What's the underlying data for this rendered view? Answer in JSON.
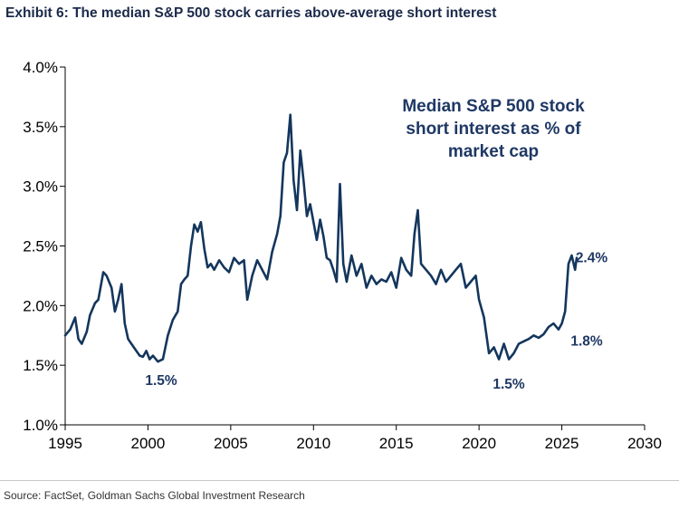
{
  "header": {
    "title": "Exhibit 6: The median S&P 500 stock carries above-average short interest"
  },
  "footer": {
    "source": "Source: FactSet, Goldman Sachs Global Investment Research"
  },
  "chart_data": {
    "type": "line",
    "series_label_lines": [
      "Median S&P 500 stock",
      "short interest as % of",
      "market cap"
    ],
    "colors": {
      "line": "#14365d",
      "text": "#1f3864"
    },
    "xlim": [
      1995,
      2030
    ],
    "ylim": [
      1.0,
      4.0
    ],
    "x_ticks": [
      1995,
      2000,
      2005,
      2010,
      2015,
      2020,
      2025,
      2030
    ],
    "y_ticks": [
      {
        "value": 1.0,
        "label": "1.0%"
      },
      {
        "value": 1.5,
        "label": "1.5%"
      },
      {
        "value": 2.0,
        "label": "2.0%"
      },
      {
        "value": 2.5,
        "label": "2.5%"
      },
      {
        "value": 3.0,
        "label": "3.0%"
      },
      {
        "value": 3.5,
        "label": "3.5%"
      },
      {
        "value": 4.0,
        "label": "4.0%"
      }
    ],
    "grid": false,
    "annotations": [
      {
        "text": "1.5%",
        "x": 2000.8,
        "y": 1.38
      },
      {
        "text": "1.5%",
        "x": 2021.8,
        "y": 1.35
      },
      {
        "text": "1.8%",
        "x": 2026.5,
        "y": 1.71
      },
      {
        "text": "2.4%",
        "x": 2026.8,
        "y": 2.41
      }
    ],
    "series": [
      {
        "x": [
          1995.0,
          1995.3,
          1995.6,
          1995.8,
          1996.0,
          1996.3,
          1996.5,
          1996.8,
          1997.0,
          1997.3,
          1997.5,
          1997.8,
          1998.0,
          1998.2,
          1998.4,
          1998.6,
          1998.8,
          1999.0,
          1999.3,
          1999.5,
          1999.7,
          1999.9,
          2000.1,
          2000.3,
          2000.6,
          2000.9,
          2001.2,
          2001.5,
          2001.8,
          2002.0,
          2002.2,
          2002.4,
          2002.6,
          2002.8,
          2003.0,
          2003.2,
          2003.4,
          2003.6,
          2003.8,
          2004.0,
          2004.3,
          2004.6,
          2004.9,
          2005.2,
          2005.5,
          2005.8,
          2006.0,
          2006.3,
          2006.6,
          2006.9,
          2007.2,
          2007.5,
          2007.8,
          2008.0,
          2008.2,
          2008.4,
          2008.6,
          2008.8,
          2009.0,
          2009.2,
          2009.4,
          2009.6,
          2009.8,
          2010.0,
          2010.2,
          2010.4,
          2010.6,
          2010.8,
          2011.0,
          2011.2,
          2011.4,
          2011.6,
          2011.8,
          2012.0,
          2012.3,
          2012.6,
          2012.9,
          2013.2,
          2013.5,
          2013.8,
          2014.1,
          2014.4,
          2014.7,
          2015.0,
          2015.3,
          2015.6,
          2015.9,
          2016.1,
          2016.3,
          2016.5,
          2016.8,
          2017.1,
          2017.4,
          2017.7,
          2018.0,
          2018.3,
          2018.6,
          2018.9,
          2019.2,
          2019.5,
          2019.8,
          2020.0,
          2020.3,
          2020.6,
          2020.9,
          2021.2,
          2021.5,
          2021.8,
          2022.1,
          2022.4,
          2022.7,
          2023.0,
          2023.3,
          2023.6,
          2023.9,
          2024.2,
          2024.5,
          2024.8,
          2025.0,
          2025.2,
          2025.4,
          2025.6,
          2025.8,
          2025.9
        ],
        "y": [
          1.75,
          1.8,
          1.9,
          1.72,
          1.68,
          1.78,
          1.92,
          2.02,
          2.05,
          2.28,
          2.25,
          2.15,
          1.95,
          2.05,
          2.18,
          1.85,
          1.72,
          1.68,
          1.62,
          1.58,
          1.57,
          1.62,
          1.55,
          1.58,
          1.53,
          1.55,
          1.75,
          1.88,
          1.95,
          2.18,
          2.22,
          2.25,
          2.5,
          2.68,
          2.62,
          2.7,
          2.48,
          2.32,
          2.35,
          2.3,
          2.38,
          2.32,
          2.28,
          2.4,
          2.35,
          2.38,
          2.05,
          2.25,
          2.38,
          2.3,
          2.22,
          2.45,
          2.6,
          2.75,
          3.2,
          3.28,
          3.6,
          3.05,
          2.8,
          3.3,
          3.05,
          2.75,
          2.85,
          2.7,
          2.55,
          2.72,
          2.58,
          2.4,
          2.38,
          2.3,
          2.2,
          3.02,
          2.35,
          2.2,
          2.42,
          2.25,
          2.35,
          2.15,
          2.25,
          2.18,
          2.22,
          2.2,
          2.28,
          2.15,
          2.4,
          2.3,
          2.25,
          2.6,
          2.8,
          2.35,
          2.3,
          2.25,
          2.18,
          2.3,
          2.2,
          2.25,
          2.3,
          2.35,
          2.15,
          2.2,
          2.25,
          2.05,
          1.9,
          1.6,
          1.65,
          1.55,
          1.68,
          1.55,
          1.6,
          1.68,
          1.7,
          1.72,
          1.75,
          1.73,
          1.76,
          1.82,
          1.85,
          1.8,
          1.85,
          1.95,
          2.35,
          2.42,
          2.3,
          2.4
        ]
      }
    ]
  }
}
